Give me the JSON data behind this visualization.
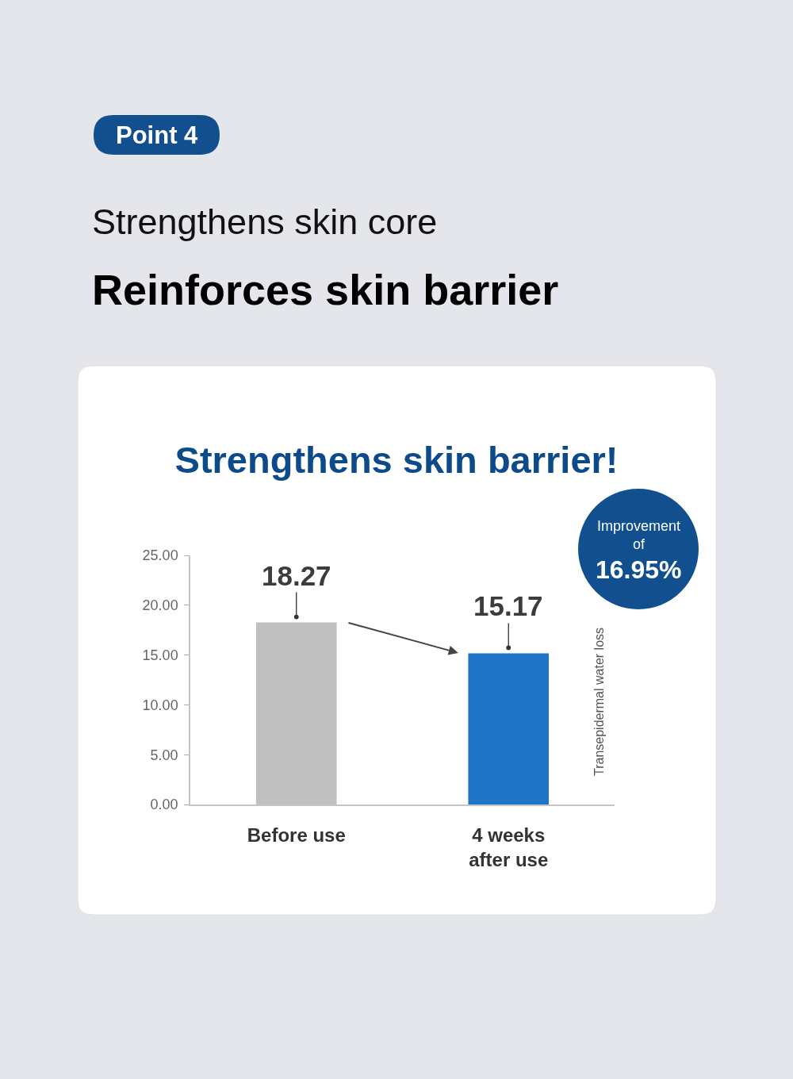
{
  "chart_data": {
    "type": "bar",
    "title": "Strengthens skin barrier!",
    "ylabel": "Transepidermal water loss",
    "categories": [
      "Before use",
      "4 weeks after use"
    ],
    "values": [
      18.27,
      15.17
    ],
    "colors": [
      "#c0c0c0",
      "#1f74c6"
    ],
    "ylim": [
      0,
      25
    ],
    "yticks": [
      {
        "value": 0,
        "label": "0.00"
      },
      {
        "value": 5,
        "label": "5.00"
      },
      {
        "value": 10,
        "label": "10.00"
      },
      {
        "value": 15,
        "label": "15.00"
      },
      {
        "value": 20,
        "label": "20.00"
      },
      {
        "value": 25,
        "label": "25.00"
      }
    ],
    "data_labels": true,
    "annotations": [
      "Point 4",
      "Strengthens skin core",
      "Reinforces skin barrier",
      "Improvement of 16.95%"
    ]
  }
}
